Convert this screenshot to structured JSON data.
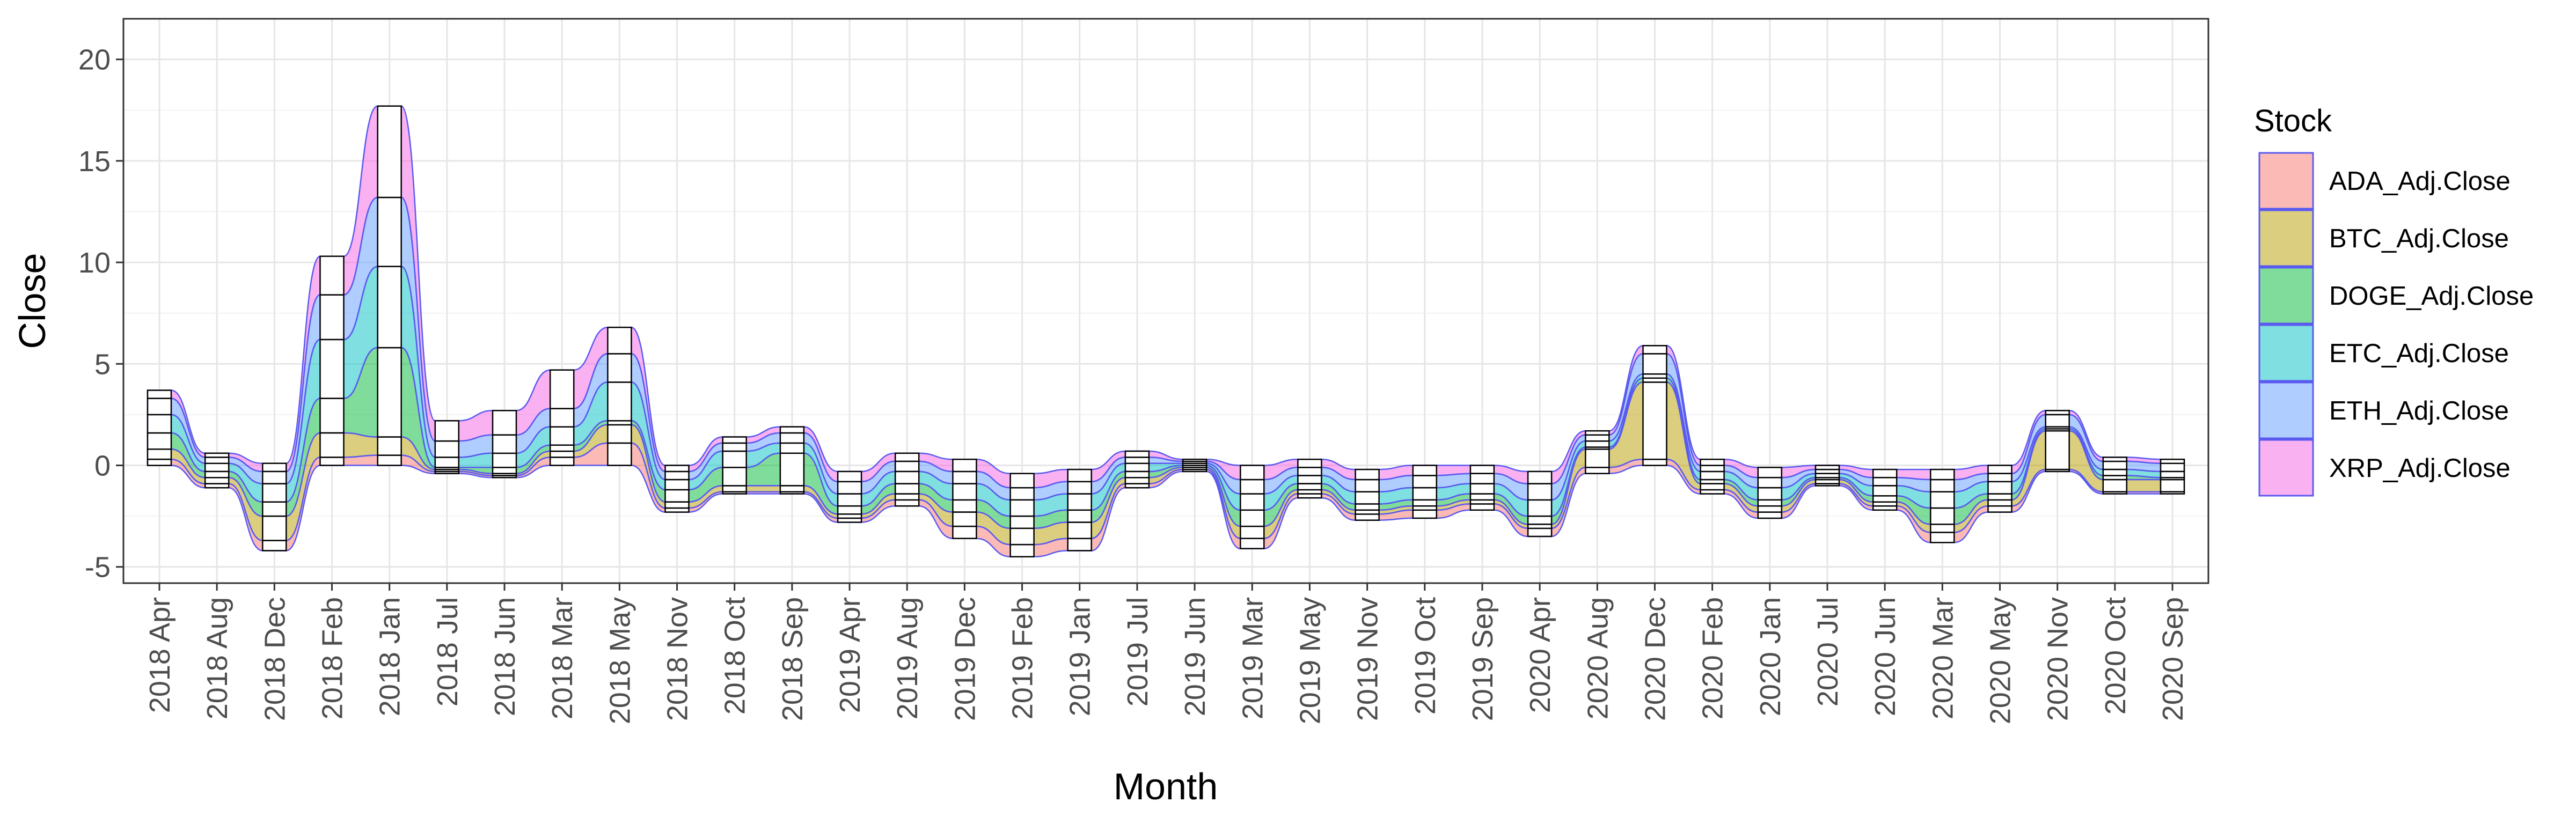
{
  "chart_data": {
    "type": "area",
    "subtype": "stacked streamgraph (ggalluvial-style) with stratum boxes",
    "xlabel": "Month",
    "ylabel": "Close",
    "ylim": [
      -5.8,
      22
    ],
    "yticks": [
      -5,
      0,
      5,
      10,
      15,
      20
    ],
    "grid": true,
    "legend": {
      "title": "Stock",
      "position": "right"
    },
    "categories": [
      "2018 Apr",
      "2018 Aug",
      "2018 Dec",
      "2018 Feb",
      "2018 Jan",
      "2018 Jul",
      "2018 Jun",
      "2018 Mar",
      "2018 May",
      "2018 Nov",
      "2018 Oct",
      "2018 Sep",
      "2019 Apr",
      "2019 Aug",
      "2019 Dec",
      "2019 Feb",
      "2019 Jan",
      "2019 Jul",
      "2019 Jun",
      "2019 Mar",
      "2019 May",
      "2019 Nov",
      "2019 Oct",
      "2019 Sep",
      "2020 Apr",
      "2020 Aug",
      "2020 Dec",
      "2020 Feb",
      "2020 Jan",
      "2020 Jul",
      "2020 Jun",
      "2020 Mar",
      "2020 May",
      "2020 Nov",
      "2020 Oct",
      "2020 Sep"
    ],
    "series": [
      {
        "name": "ADA_Adj.Close",
        "color": "#F8766D",
        "values": [
          0.3,
          0.2,
          0.5,
          0.4,
          0.5,
          0.1,
          0.1,
          0.4,
          1.1,
          0.2,
          0.1,
          0.1,
          0.2,
          0.3,
          0.6,
          0.6,
          0.6,
          0.2,
          0.1,
          0.5,
          0.2,
          0.3,
          0.4,
          0.3,
          0.4,
          0.3,
          0.3,
          0.2,
          0.3,
          0.1,
          0.2,
          0.5,
          0.3,
          0.1,
          0.1,
          0.1
        ]
      },
      {
        "name": "BTC_Adj.Close",
        "color": "#B79F00",
        "values": [
          0.5,
          0.3,
          1.2,
          1.2,
          0.9,
          0.1,
          0.1,
          0.3,
          0.9,
          0.3,
          0.3,
          0.3,
          0.2,
          0.3,
          0.7,
          0.8,
          0.8,
          0.3,
          0.1,
          0.6,
          0.2,
          0.2,
          0.2,
          0.2,
          0.2,
          0.9,
          3.8,
          0.3,
          0.3,
          0.2,
          0.2,
          0.4,
          0.3,
          1.9,
          0.6,
          0.6
        ]
      },
      {
        "name": "DOGE_Adj.Close",
        "color": "#00BA38",
        "values": [
          0.8,
          0.3,
          0.7,
          1.7,
          4.4,
          0.1,
          0.3,
          0.3,
          0.2,
          0.6,
          0.9,
          1.6,
          0.4,
          0.5,
          0.6,
          0.6,
          0.6,
          0.3,
          0.1,
          0.8,
          0.3,
          0.3,
          0.3,
          0.3,
          0.4,
          0.1,
          0.2,
          0.2,
          0.3,
          0.1,
          0.3,
          0.8,
          0.3,
          0.1,
          0.2,
          0.1
        ]
      },
      {
        "name": "ETC_Adj.Close",
        "color": "#00BFC4",
        "values": [
          0.9,
          0.4,
          0.9,
          2.9,
          4.0,
          0.5,
          0.7,
          0.9,
          1.9,
          0.5,
          0.8,
          0.5,
          0.6,
          0.6,
          0.8,
          0.8,
          0.8,
          0.4,
          0.1,
          0.8,
          0.4,
          0.6,
          0.6,
          0.5,
          0.8,
          0.3,
          0.2,
          0.4,
          0.6,
          0.2,
          0.5,
          0.8,
          0.6,
          0.1,
          0.3,
          0.3
        ]
      },
      {
        "name": "ETH_Adj.Close",
        "color": "#619CFF",
        "values": [
          0.8,
          0.3,
          0.6,
          2.2,
          3.4,
          0.8,
          0.9,
          0.9,
          1.4,
          0.4,
          0.4,
          0.5,
          0.6,
          0.5,
          0.6,
          0.6,
          0.6,
          0.3,
          0.1,
          0.7,
          0.4,
          0.6,
          0.6,
          0.5,
          0.8,
          0.3,
          1.0,
          0.3,
          0.5,
          0.2,
          0.4,
          0.6,
          0.4,
          0.6,
          0.4,
          0.4
        ]
      },
      {
        "name": "XRP_Adj.Close",
        "color": "#F564E3",
        "values": [
          0.4,
          0.2,
          0.4,
          1.9,
          4.5,
          1.0,
          1.2,
          1.9,
          1.3,
          0.3,
          0.3,
          0.3,
          0.5,
          0.4,
          0.6,
          0.7,
          0.6,
          0.3,
          0.1,
          0.7,
          0.4,
          0.5,
          0.5,
          0.4,
          0.6,
          0.2,
          0.4,
          0.3,
          0.5,
          0.2,
          0.4,
          0.5,
          0.4,
          0.2,
          0.2,
          0.2
        ]
      }
    ],
    "baseline": [
      0.0,
      -1.1,
      -4.2,
      0.0,
      0.0,
      -0.4,
      -0.6,
      0.0,
      0.0,
      -2.3,
      -1.4,
      -1.4,
      -2.8,
      -2.0,
      -3.6,
      -4.5,
      -4.2,
      -1.1,
      -0.3,
      -4.1,
      -1.6,
      -2.7,
      -2.6,
      -2.2,
      -3.5,
      -0.4,
      0.0,
      -1.4,
      -2.6,
      -1.0,
      -2.2,
      -3.8,
      -2.3,
      -0.3,
      -1.4,
      -1.4
    ]
  }
}
